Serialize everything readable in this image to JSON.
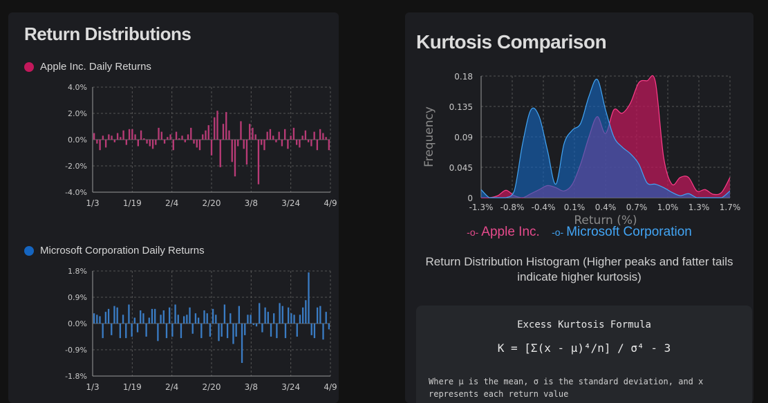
{
  "colors": {
    "apple": "#c2185b",
    "apple_bar": "#b83b76",
    "microsoft": "#1565c0",
    "microsoft_bar": "#3a7cc4",
    "apple_line": "#ff3d8a",
    "apple_legend": "#e64a8c",
    "microsoft_legend": "#42a5f5"
  },
  "left": {
    "title": "Return Distributions",
    "apple_legend": "Apple Inc. Daily Returns",
    "microsoft_legend": "Microsoft Corporation Daily Returns"
  },
  "right": {
    "title": "Kurtosis Comparison",
    "legend_apple": "Apple Inc.",
    "legend_microsoft": "Microsoft Corporation",
    "caption": "Return Distribution Histogram (Higher peaks and fatter tails indicate higher kurtosis)",
    "formula_title": "Excess Kurtosis Formula",
    "formula": "K = [Σ(x - μ)⁴/n] / σ⁴ - 3",
    "formula_note": "Where μ is the mean, σ is the standard deviation, and x represents each return value"
  },
  "chart_data": [
    {
      "type": "bar",
      "name": "apple-daily-returns",
      "title": "Apple Inc. Daily Returns",
      "x_ticks": [
        "1/3",
        "1/19",
        "2/4",
        "2/20",
        "3/8",
        "3/24",
        "4/9"
      ],
      "y_ticks": [
        "4.0%",
        "2.0%",
        "0.0%",
        "-2.0%",
        "-4.0%"
      ],
      "ylim": [
        -4.0,
        4.0
      ],
      "values": [
        0.5,
        -0.3,
        -0.8,
        0.3,
        -0.6,
        0.4,
        0.3,
        -0.2,
        0.5,
        0.2,
        0.7,
        -0.4,
        0.8,
        0.8,
        0.4,
        -0.5,
        0.7,
        0.1,
        -0.3,
        -0.5,
        -0.7,
        -0.4,
        0.9,
        0.6,
        -0.3,
        0.2,
        0.4,
        -0.8,
        0.6,
        0.1,
        0.3,
        -0.2,
        0.4,
        0.9,
        -0.3,
        -0.6,
        -0.8,
        0.4,
        0.7,
        1.1,
        -1.2,
        1.7,
        2.2,
        -2.1,
        1.2,
        2.1,
        0.7,
        -1.7,
        -2.8,
        -0.5,
        1.4,
        -0.7,
        -1.9,
        1.2,
        0.9,
        0.4,
        -3.4,
        -0.4,
        -0.8,
        0.6,
        0.8,
        0.3,
        -0.2,
        0.6,
        -0.5,
        0.8,
        -0.7,
        0.3,
        0.9,
        -0.4,
        -0.6,
        0.3,
        0.7,
        -0.2,
        -0.5,
        0.6,
        -0.8,
        0.8,
        0.5,
        0.2,
        -0.8
      ]
    },
    {
      "type": "bar",
      "name": "microsoft-daily-returns",
      "title": "Microsoft Corporation Daily Returns",
      "x_ticks": [
        "1/3",
        "1/19",
        "2/4",
        "2/20",
        "3/8",
        "3/24",
        "4/9"
      ],
      "y_ticks": [
        "1.8%",
        "0.9%",
        "0.0%",
        "-0.9%",
        "-1.8%"
      ],
      "ylim": [
        -1.8,
        1.8
      ],
      "values": [
        0.35,
        0.3,
        0.25,
        -0.5,
        0.4,
        0.5,
        -0.4,
        0.6,
        0.55,
        -0.5,
        0.3,
        -0.5,
        0.65,
        -0.45,
        0.2,
        -0.3,
        0.45,
        0.35,
        -0.45,
        0.2,
        0.5,
        0.5,
        -0.6,
        0.3,
        0.45,
        -0.5,
        0.55,
        -0.45,
        0.65,
        0.3,
        -0.5,
        0.25,
        0.3,
        0.55,
        -0.35,
        0.35,
        0.2,
        -0.5,
        0.45,
        0.35,
        -0.45,
        0.5,
        0.3,
        -0.6,
        -0.45,
        0.65,
        -0.5,
        0.35,
        -0.7,
        -0.45,
        0.6,
        -1.35,
        -0.4,
        0.3,
        0.3,
        -0.05,
        -0.1,
        0.7,
        -0.3,
        0.55,
        0.4,
        -0.45,
        0.35,
        -0.5,
        0.7,
        0.6,
        -0.5,
        0.55,
        0.35,
        0.3,
        -0.45,
        0.3,
        0.55,
        0.8,
        1.75,
        -0.4,
        -0.5,
        0.55,
        0.6,
        -0.55,
        0.4,
        -0.2
      ]
    },
    {
      "type": "area",
      "name": "kurtosis-histogram",
      "title": "Kurtosis Comparison",
      "xlabel": "Return (%)",
      "ylabel": "Frequency",
      "x_ticks": [
        "-1.3%",
        "-0.8%",
        "-0.4%",
        "0.1%",
        "0.4%",
        "0.7%",
        "1.0%",
        "1.3%",
        "1.7%"
      ],
      "y_ticks": [
        "0",
        "0.045",
        "0.09",
        "0.135",
        "0.18"
      ],
      "xlim": [
        -1.3,
        1.7
      ],
      "ylim": [
        0,
        0.18
      ],
      "x": [
        -1.3,
        -1.2,
        -1.1,
        -1.0,
        -0.9,
        -0.8,
        -0.7,
        -0.6,
        -0.5,
        -0.4,
        -0.3,
        -0.2,
        -0.1,
        0.0,
        0.1,
        0.2,
        0.3,
        0.4,
        0.5,
        0.6,
        0.7,
        0.8,
        0.9,
        1.0,
        1.1,
        1.2,
        1.3,
        1.4,
        1.5,
        1.6,
        1.7
      ],
      "series": [
        {
          "name": "Apple Inc.",
          "values": [
            0,
            0,
            0.003,
            0.011,
            0.003,
            0,
            0.006,
            0.012,
            0.018,
            0.015,
            0.01,
            0.02,
            0.05,
            0.09,
            0.12,
            0.095,
            0.13,
            0.125,
            0.14,
            0.17,
            0.173,
            0.172,
            0.06,
            0.02,
            0.03,
            0.03,
            0.01,
            0.012,
            0.005,
            0.008,
            0.03
          ]
        },
        {
          "name": "Microsoft Corporation",
          "values": [
            0.012,
            0,
            0,
            0,
            0.01,
            0.08,
            0.13,
            0.12,
            0.07,
            0.02,
            0.08,
            0.1,
            0.11,
            0.15,
            0.175,
            0.13,
            0.09,
            0.075,
            0.065,
            0.05,
            0.022,
            0.02,
            0.015,
            0.008,
            0.003,
            0.006,
            0,
            0,
            0,
            0,
            0.01
          ]
        }
      ]
    }
  ]
}
